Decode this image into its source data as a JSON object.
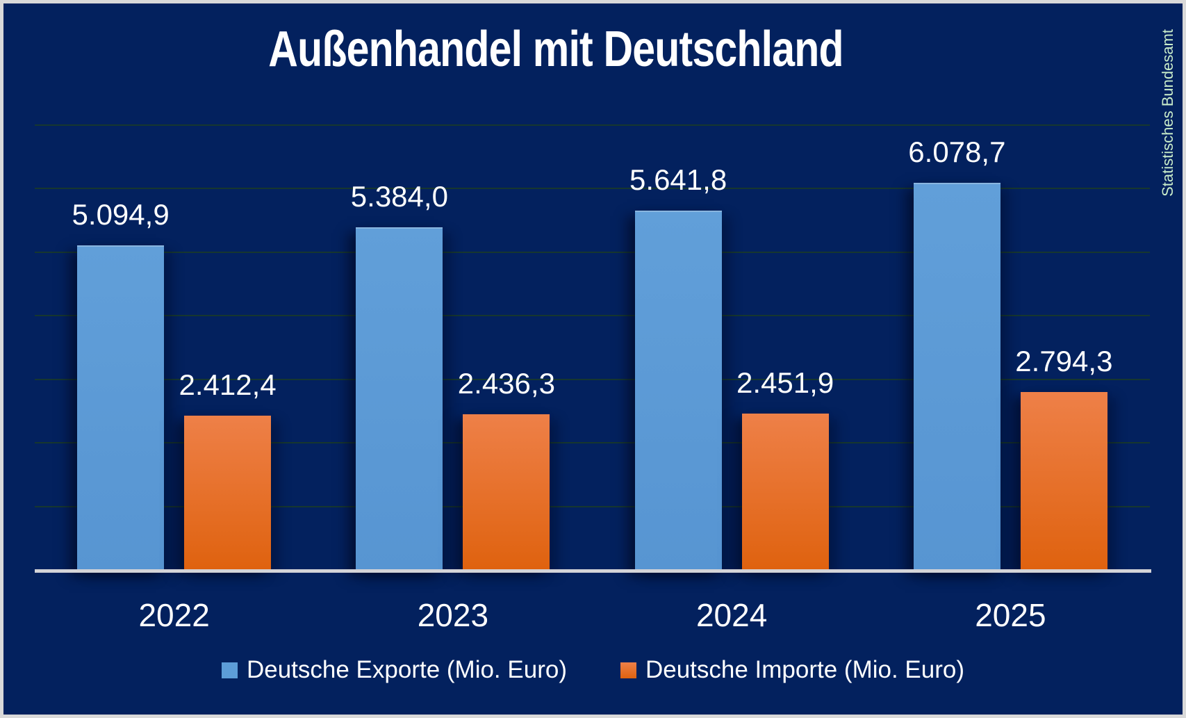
{
  "title": "Außenhandel mit Deutschland",
  "source": "Statistisches Bundesamt",
  "chart_data": {
    "type": "bar",
    "title": "Außenhandel mit Deutschland",
    "categories": [
      "2022",
      "2023",
      "2024",
      "2025"
    ],
    "series": [
      {
        "name": "Deutsche Exporte (Mio. Euro)",
        "color": "#5d9dd8",
        "values": [
          5094.9,
          5384.0,
          5641.8,
          6078.7
        ],
        "labels": [
          "5.094,9",
          "5.384,0",
          "5.641,8",
          "6.078,7"
        ]
      },
      {
        "name": "Deutsche Importe (Mio. Euro)",
        "color": "#e8702a",
        "gradient": [
          "#ee8048",
          "#df620f"
        ],
        "values": [
          2412.4,
          2436.3,
          2451.9,
          2794.3
        ],
        "labels": [
          "2.412,4",
          "2.436,3",
          "2.451,9",
          "2.794,3"
        ]
      }
    ],
    "xlabel": "",
    "ylabel": "",
    "ylim": [
      0,
      7000
    ],
    "gridline_step": 1000,
    "grid": true,
    "legend_position": "bottom"
  },
  "colors": {
    "background": "#03215e",
    "frame": "#d9d9d9",
    "gridline": "#17372f",
    "axis_line": "#d4d4d8",
    "label_text": "#ffffff",
    "source_text": "#c9ecca"
  }
}
